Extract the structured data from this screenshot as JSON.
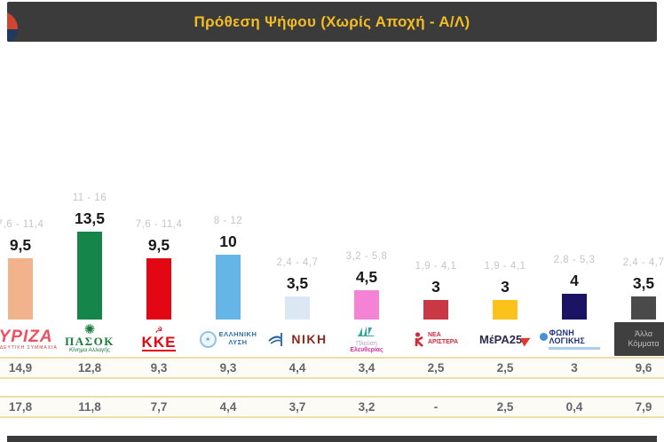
{
  "header": {
    "title": "Πρόθεση Ψήφου (Χωρίς Αποχή - Α/Λ)"
  },
  "colors": {
    "header_bg": "#3b3b3b",
    "header_text": "#f3bd22",
    "band_border": "#eedfa8",
    "band_bg": "#fcfbf6",
    "range_text": "#c6c6c6",
    "value_text": "#17171c",
    "cell_text": "#63666a",
    "header_logo_top": "#d0452f",
    "header_logo_bottom": "#1e3a5f"
  },
  "chart_data": {
    "type": "bar",
    "title": "Πρόθεση Ψήφου (Χωρίς Αποχή - Α/Λ)",
    "categories": [
      "ΣΥΡΙΖΑ",
      "ΠΑΣΟΚ - Κίνημα Αλλαγής",
      "ΚΚΕ",
      "ΕΛΛΗΝΙΚΗ ΛΥΣΗ",
      "ΝΙΚΗ",
      "Πλεύση Ελευθερίας",
      "ΝΕΑ ΑΡΙΣΤΕΡΑ",
      "ΜέΡΑ25",
      "ΦΩΝΗ ΛΟΓΙΚΗΣ",
      "Άλλα Κόμματα"
    ],
    "values": [
      9.5,
      13.5,
      9.5,
      10,
      3.5,
      4.5,
      3,
      3,
      4,
      3.5
    ],
    "value_labels": [
      "9,5",
      "13,5",
      "9,5",
      "10",
      "3,5",
      "4,5",
      "3",
      "3",
      "4",
      "3,5"
    ],
    "confidence_ranges": [
      "7,6 - 11,4",
      "11 - 16",
      "7,6 - 11,4",
      "8 - 12",
      "2,4 - 4,7",
      "3,2 - 5,8",
      "1,9 - 4,1",
      "1,9 - 4,1",
      "2,8 - 5,3",
      "2,4 - 4,7"
    ],
    "table_row_1": [
      "14,9",
      "12,8",
      "9,3",
      "9,3",
      "4,4",
      "3,4",
      "2,5",
      "2,5",
      "3",
      "9,6"
    ],
    "table_row_2": [
      "17,8",
      "11,8",
      "7,7",
      "4,4",
      "3,7",
      "3,2",
      "-",
      "2,5",
      "0,4",
      "7,9"
    ],
    "bar_colors": [
      "#f2b28c",
      "#16854a",
      "#e30613",
      "#63b6e6",
      "#dbe7f3",
      "#f583d5",
      "#ca3745",
      "#fcc21c",
      "#1b1464",
      "#4a4a4a"
    ],
    "ylim": [
      0,
      16
    ],
    "grid": false,
    "legend": false
  },
  "parties": [
    {
      "name": "ΣΥΡΙΖΑ",
      "color": "#f2b28c",
      "value": 9.5,
      "value_label": "9,5",
      "range": "7,6 - 11,4",
      "row1": "14,9",
      "row2": "17,8",
      "logo": {
        "kind": "syriza",
        "line1": "ΣΥΡΙΖΑ",
        "line2": "ΠΡΟΟΔΕΥΤΙΚΗ ΣΥΜΜΑΧΙΑ",
        "color": "#ef4f5f",
        "color2": "#d23a3a"
      }
    },
    {
      "name": "ΠΑΣΟΚ - Κίνημα Αλλαγής",
      "color": "#16854a",
      "value": 13.5,
      "value_label": "13,5",
      "range": "11 - 16",
      "row1": "12,8",
      "row2": "11,8",
      "logo": {
        "kind": "pasok",
        "sun": "✺",
        "line1": "ΠΑΣΟΚ",
        "line2": "Κίνημα Αλλαγής",
        "color": "#1a7a3c"
      }
    },
    {
      "name": "ΚΚΕ",
      "color": "#e30613",
      "value": 9.5,
      "value_label": "9,5",
      "range": "7,6 - 11,4",
      "row1": "9,3",
      "row2": "7,7",
      "logo": {
        "kind": "kke",
        "symbol": "☭",
        "line1": "ΚΚΕ",
        "color": "#e30613"
      }
    },
    {
      "name": "ΕΛΛΗΝΙΚΗ ΛΥΣΗ",
      "color": "#63b6e6",
      "value": 10,
      "value_label": "10",
      "range": "8 - 12",
      "row1": "9,3",
      "row2": "4,4",
      "logo": {
        "kind": "ellysi",
        "emblem": "✶",
        "line1": "ΕΛΛΗΝΙΚΗ",
        "line2": "ΛΥΣΗ",
        "color": "#2a6fb5"
      }
    },
    {
      "name": "ΝΙΚΗ",
      "color": "#dbe7f3",
      "value": 3.5,
      "value_label": "3,5",
      "range": "2,4 - 4,7",
      "row1": "4,4",
      "row2": "3,7",
      "logo": {
        "kind": "niki",
        "line1": "ΝΙΚΗ",
        "color": "#8a2a1e",
        "icon_color": "#2660a4"
      }
    },
    {
      "name": "Πλεύση Ελευθερίας",
      "color": "#f583d5",
      "value": 4.5,
      "value_label": "4,5",
      "range": "3,2 - 5,8",
      "row1": "3,4",
      "row2": "3,2",
      "logo": {
        "kind": "plefsi",
        "line1": "Πλεύση",
        "line2": "Ελευθερίας",
        "color1": "#b89ad6",
        "color2": "#d6329b",
        "sail_color": "#2aa9a0"
      }
    },
    {
      "name": "ΝΕΑ ΑΡΙΣΤΕΡΑ",
      "color": "#ca3745",
      "value": 3,
      "value_label": "3",
      "range": "1,9 - 4,1",
      "row1": "2,5",
      "row2": "-",
      "logo": {
        "kind": "nea",
        "line1": "ΝΕΑ",
        "line2": "ΑΡΙΣΤΕΡΑ",
        "color": "#d02c3c"
      }
    },
    {
      "name": "ΜέΡΑ25",
      "color": "#fcc21c",
      "value": 3,
      "value_label": "3",
      "range": "1,9 - 4,1",
      "row1": "2,5",
      "row2": "2,5",
      "logo": {
        "kind": "mera",
        "line1": "ΜέΡΑ25",
        "arrow": "▶",
        "color": "#2b2b4e",
        "arrow_color": "#e03a2f"
      }
    },
    {
      "name": "ΦΩΝΗ ΛΟΓΙΚΗΣ",
      "color": "#1b1464",
      "value": 4,
      "value_label": "4",
      "range": "2,8 - 5,3",
      "row1": "3",
      "row2": "0,4",
      "logo": {
        "kind": "foni",
        "line1": "ΦΩΝΗ ΛΟΓΙΚΗΣ",
        "color": "#1d2f7c",
        "globe_color": "#4a90d9",
        "sub_color": "#a8cdf0"
      }
    },
    {
      "name": "Άλλα Κόμματα",
      "color": "#4a4a4a",
      "value": 3.5,
      "value_label": "3,5",
      "range": "2,4 - 4,7",
      "row1": "9,6",
      "row2": "7,9",
      "logo": {
        "kind": "alla",
        "line1": "Άλλα",
        "line2": "Κόμματα",
        "bg": "#3f3f3f",
        "color": "#bdbdbd"
      }
    }
  ]
}
